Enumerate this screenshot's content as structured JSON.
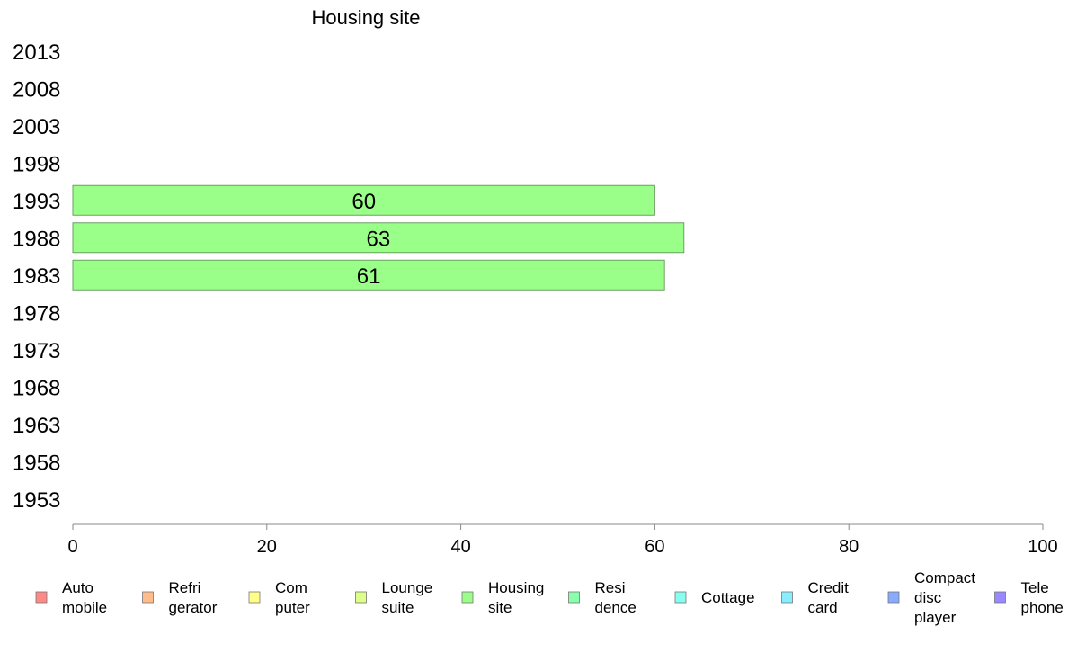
{
  "chart_data": {
    "type": "bar",
    "orientation": "horizontal",
    "title": "Housing site",
    "xlabel": "",
    "ylabel": "",
    "xlim": [
      0,
      100
    ],
    "x_ticks": [
      "0",
      "20",
      "40",
      "60",
      "80",
      "100"
    ],
    "categories": [
      "2013",
      "2008",
      "2003",
      "1998",
      "1993",
      "1988",
      "1983",
      "1978",
      "1973",
      "1968",
      "1963",
      "1958",
      "1953"
    ],
    "series": [
      {
        "name": "Housing site",
        "color": "#99ff88",
        "values": [
          null,
          null,
          null,
          null,
          60,
          63,
          61,
          null,
          null,
          null,
          null,
          null,
          null
        ],
        "labels": [
          "",
          "",
          "",
          "",
          "60",
          "63",
          "61",
          "",
          "",
          "",
          "",
          "",
          ""
        ]
      }
    ],
    "grid": false,
    "legend_position": "bottom",
    "legend": [
      {
        "lines": [
          "Auto",
          "mobile"
        ],
        "color": "#ff8888"
      },
      {
        "lines": [
          "Refri",
          "gerator"
        ],
        "color": "#ffbb88"
      },
      {
        "lines": [
          "Com",
          "puter"
        ],
        "color": "#ffff88"
      },
      {
        "lines": [
          "Lounge",
          "suite"
        ],
        "color": "#ddff88"
      },
      {
        "lines": [
          "Housing",
          "site"
        ],
        "color": "#99ff88"
      },
      {
        "lines": [
          "Resi",
          "dence"
        ],
        "color": "#88ffaa"
      },
      {
        "lines": [
          "Cottage"
        ],
        "color": "#88ffee"
      },
      {
        "lines": [
          "Credit",
          "card"
        ],
        "color": "#88eeff"
      },
      {
        "lines": [
          "Compact",
          "disc",
          "player"
        ],
        "color": "#88aaff"
      },
      {
        "lines": [
          "Tele",
          "phone"
        ],
        "color": "#9988ff"
      }
    ]
  }
}
